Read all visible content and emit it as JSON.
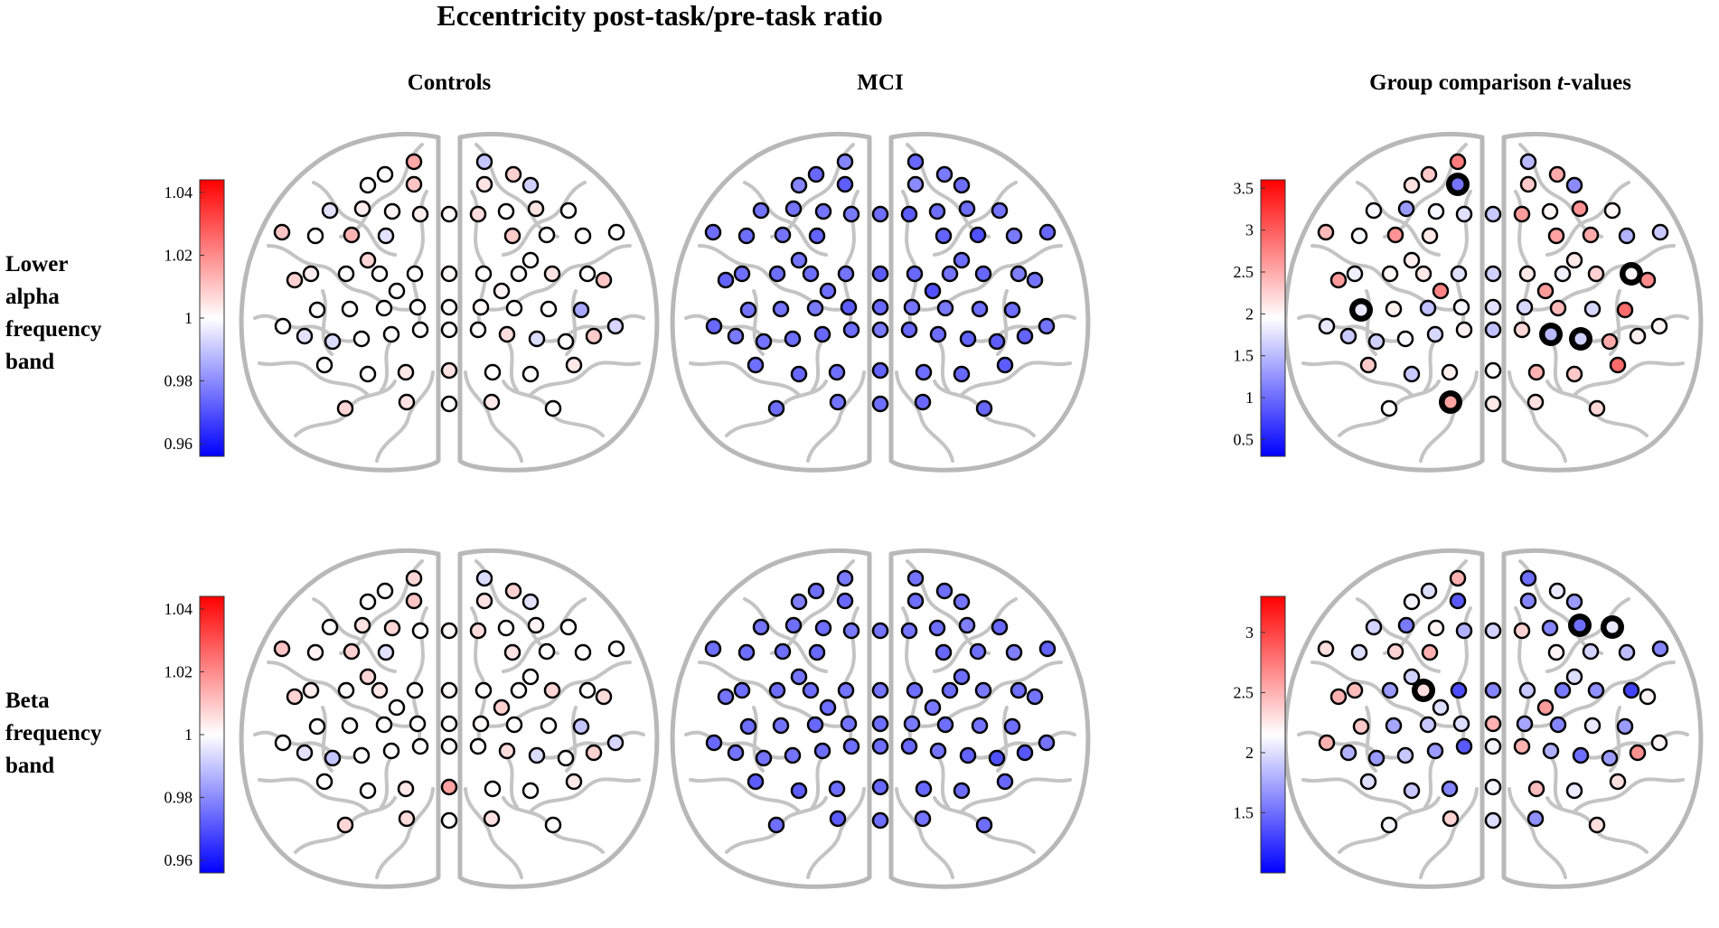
{
  "figure": {
    "title": "Eccentricity post-task/pre-task ratio",
    "columns": {
      "controls": "Controls",
      "mci": "MCI",
      "group_prefix": "Group comparison ",
      "group_italic": "t",
      "group_suffix": "-values"
    },
    "rows": [
      [
        "Lower",
        "alpha",
        "frequency",
        "band"
      ],
      [
        "Beta",
        "frequency",
        "band"
      ]
    ]
  },
  "chart_data": [
    {
      "type": "heatmap",
      "panel": "Lower alpha - Controls",
      "scale": "ratio",
      "colorbar": {
        "ticks": [
          "1.04",
          "1.02",
          "1",
          "0.98",
          "0.96"
        ],
        "range": [
          0.956,
          1.044
        ]
      },
      "values": [
        1.015,
        0.99,
        1,
        1.01,
        1.005,
        0.992,
        0.995,
        1.003,
        1.002,
        1.003,
        1.001,
        1.006,
        1,
        1.005,
        1,
        1.01,
        1,
        1.013,
        0.995,
        1.009,
        1,
        1,
        1,
        1.003,
        1,
        1,
        1,
        1.001,
        1,
        1,
        1.005,
        1,
        1,
        1,
        1,
        1,
        1,
        1.001,
        1,
        1,
        0.985,
        1,
        0.994,
        1,
        1,
        1,
        1,
        1,
        1.006,
        0.994,
        1,
        0.993,
        1,
        1.004,
        1.005,
        1,
        1,
        1.007,
        1.005,
        1,
        1.004,
        1,
        1,
        1.008,
        1.008,
        1.01,
        0.995,
        1.009,
        1.007,
        1,
        1,
        1.002,
        1,
        1.004
      ]
    },
    {
      "type": "heatmap",
      "panel": "Lower alpha - MCI",
      "scale": "ratio",
      "colorbar": {
        "ticks": [
          "1.04",
          "1.02",
          "1",
          "0.98",
          "0.96"
        ],
        "range": [
          0.956,
          1.044
        ]
      },
      "values": [
        0.979,
        0.974,
        0.979,
        0.972,
        0.98,
        0.975,
        0.976,
        0.976,
        0.976,
        0.977,
        0.975,
        0.972,
        0.975,
        0.975,
        0.976,
        0.975,
        0.975,
        0.976,
        0.973,
        0.973,
        0.97,
        0.977,
        0.974,
        0.975,
        0.975,
        0.975,
        0.976,
        0.972,
        0.974,
        0.976,
        0.974,
        0.978,
        0.976,
        0.976,
        0.977,
        0.972,
        0.974,
        0.976,
        0.977,
        0.975,
        0.975,
        0.974,
        0.976,
        0.975,
        0.974,
        0.975,
        0.977,
        0.974,
        0.975,
        0.973,
        0.972,
        0.976,
        0.974,
        0.975,
        0.973,
        0.975,
        0.974,
        0.975,
        0.976,
        0.975,
        0.974,
        0.974,
        0.974,
        0.977,
        0.973,
        0.976,
        0.977,
        0.973,
        0.976,
        0.975,
        0.975,
        0.97,
        0.975,
        0.972
      ]
    },
    {
      "type": "heatmap",
      "panel": "Lower alpha - Group comparison t-values",
      "scale": "t",
      "colorbar": {
        "ticks": [
          "3.5",
          "3",
          "2.5",
          "2",
          "1.5",
          "1",
          "0.5"
        ],
        "range": [
          0.3,
          3.6
        ]
      },
      "values": [
        2.8,
        1.5,
        2.15,
        1.05,
        2.3,
        1.2,
        1.9,
        1.3,
        1.9,
        1.75,
        1.6,
        2.6,
        2,
        2.65,
        2,
        2.4,
        1.9,
        2.65,
        2.1,
        2.55,
        2.5,
        1.45,
        1.6,
        1.85,
        2,
        2.1,
        1.75,
        1.65,
        2.1,
        1.85,
        2.25,
        2,
        1.8,
        2.05,
        1.55,
        1.9,
        1.75,
        1.7,
        2.4,
        1.7,
        2.9,
        1.8,
        1.65,
        1.9,
        1.7,
        2.05,
        1.55,
        2.2,
        1.5,
        1.65,
        2.5,
        2,
        1.6,
        2.05,
        1.95,
        2.45,
        2.3,
        1.95,
        2.55,
        2.1,
        2.15,
        2.2,
        2.3,
        2.5,
        2.6,
        2.7,
        1.6,
        2.05,
        2.05,
        2.1,
        2.75,
        2.6,
        2.3,
        2.9
      ],
      "highlighted": [
        3,
        31,
        32,
        48,
        49,
        58
      ]
    },
    {
      "type": "heatmap",
      "panel": "Beta - Controls",
      "scale": "ratio",
      "colorbar": {
        "ticks": [
          "1.04",
          "1.02",
          "1",
          "0.98",
          "0.96"
        ],
        "range": [
          0.956,
          1.044
        ]
      },
      "values": [
        1.007,
        0.994,
        1,
        1.01,
        1.005,
        0.995,
        1,
        1.005,
        1.007,
        1,
        1.001,
        1.006,
        1,
        1.002,
        1,
        1.01,
        1.002,
        1.008,
        0.995,
        1.005,
        1,
        1,
        1,
        1.003,
        1,
        1.004,
        1,
        1.001,
        1,
        1,
        1.007,
        1,
        1,
        1,
        1,
        1,
        1,
        1.001,
        1,
        1,
        0.99,
        1,
        0.99,
        1,
        1,
        1,
        1,
        1,
        1.006,
        0.994,
        1,
        0.993,
        1,
        1.004,
        1.016,
        1,
        1,
        1.007,
        1.006,
        1,
        1.005,
        1,
        1,
        1.008,
        1.008,
        1.006,
        0.995,
        1.008,
        1.007,
        1,
        1,
        1.008,
        1,
        1.004
      ]
    },
    {
      "type": "heatmap",
      "panel": "Beta - MCI",
      "scale": "ratio",
      "colorbar": {
        "ticks": [
          "1.04",
          "1.02",
          "1",
          "0.98",
          "0.96"
        ],
        "range": [
          0.956,
          1.044
        ]
      },
      "values": [
        0.977,
        0.976,
        0.978,
        0.974,
        0.975,
        0.976,
        0.976,
        0.975,
        0.975,
        0.977,
        0.976,
        0.976,
        0.975,
        0.978,
        0.974,
        0.975,
        0.975,
        0.975,
        0.974,
        0.974,
        0.975,
        0.978,
        0.973,
        0.975,
        0.975,
        0.975,
        0.976,
        0.976,
        0.975,
        0.975,
        0.977,
        0.975,
        0.975,
        0.976,
        0.974,
        0.976,
        0.975,
        0.977,
        0.975,
        0.976,
        0.975,
        0.974,
        0.976,
        0.976,
        0.975,
        0.975,
        0.975,
        0.974,
        0.976,
        0.973,
        0.97,
        0.976,
        0.972,
        0.975,
        0.974,
        0.974,
        0.975,
        0.975,
        0.972,
        0.975,
        0.976,
        0.975,
        0.975,
        0.975,
        0.976,
        0.976,
        0.976,
        0.971,
        0.976,
        0.975,
        0.975,
        0.977,
        0.972,
        0.974
      ]
    },
    {
      "type": "heatmap",
      "panel": "Beta - Group comparison t-values",
      "scale": "t",
      "colorbar": {
        "ticks": [
          "3",
          "2.5",
          "2",
          "1.5"
        ],
        "range": [
          1.0,
          3.3
        ]
      },
      "values": [
        2.5,
        1.5,
        2.1,
        1.4,
        1.6,
        1.7,
        1.95,
        1.55,
        2.2,
        1.8,
        1.95,
        2.35,
        1.6,
        1.5,
        2.05,
        2.3,
        2.0,
        2.35,
        2.5,
        2.2,
        1.95,
        1.85,
        1.6,
        2.45,
        1.7,
        2.3,
        1.35,
        1.6,
        1.9,
        1.55,
        1.65,
        1.3,
        2.4,
        1.75,
        1.9,
        2.0,
        2.5,
        1.75,
        1.6,
        2.05,
        1.7,
        2.5,
        1.7,
        1.9,
        1.7,
        1.4,
        2.1,
        2.5,
        1.8,
        1.5,
        1.7,
        2.2,
        1.9,
        1.6,
        2.1,
        2.45,
        2.05,
        2.1,
        2.35,
        2.0,
        1.65,
        2.3,
        2.0,
        2.05,
        2.5,
        2.2,
        1.8,
        2.65,
        1.95,
        2.0,
        2.0,
        2.6,
        2.0,
        2.3
      ],
      "highlighted": [
        13,
        14,
        25
      ]
    }
  ]
}
